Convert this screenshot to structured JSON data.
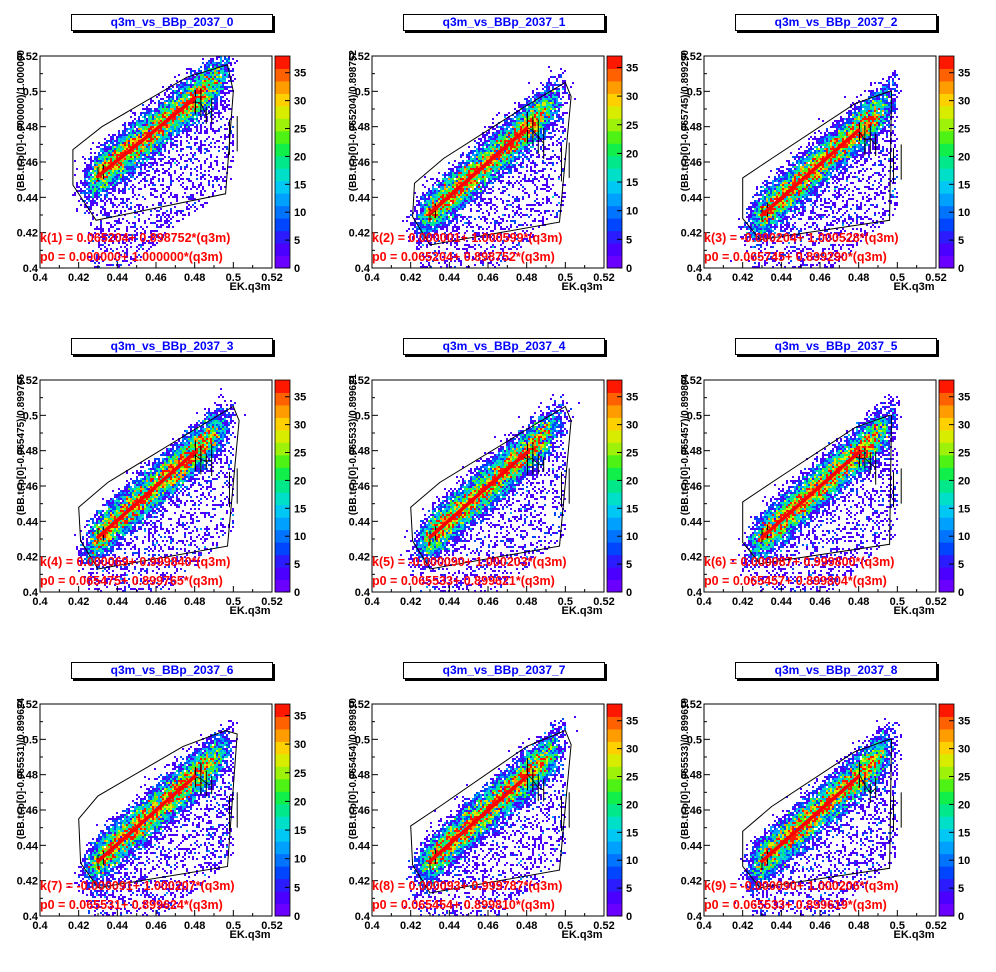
{
  "chart_data": [
    {
      "type": "heatmap",
      "title": "q3m_vs_BBp_2037_0",
      "xlabel": "EK.q3m",
      "ylabel": "(BB.tr.p[0]-0.000000)/1.000000",
      "xlim": [
        0.4,
        0.52
      ],
      "ylim": [
        0.4,
        0.52
      ],
      "x_ticks": [
        "0.4",
        "0.42",
        "0.44",
        "0.46",
        "0.48",
        "0.5",
        "0.52"
      ],
      "y_ticks": [
        "0.4",
        "0.42",
        "0.44",
        "0.46",
        "0.48",
        "0.5",
        "0.52"
      ],
      "z_ticks": [
        "0",
        "5",
        "10",
        "15",
        "20",
        "25",
        "30",
        "35"
      ],
      "zlim": [
        0,
        38
      ],
      "annotations": [
        "k(1) = 0.065204+ 0.898752*(q3m)",
        "p0 = 0.000000+ 1.000000*(q3m)"
      ],
      "fit_line": {
        "x": [
          0.43,
          0.48
        ],
        "y": [
          0.452,
          0.496
        ]
      },
      "profile": [
        [
          0.478,
          0.494
        ],
        [
          0.482,
          0.492
        ],
        [
          0.486,
          0.487
        ],
        [
          0.49,
          0.483
        ],
        [
          0.494,
          0.478
        ]
      ],
      "cut_polygon": [
        [
          0.417,
          0.467
        ],
        [
          0.432,
          0.48
        ],
        [
          0.476,
          0.508
        ],
        [
          0.497,
          0.515
        ],
        [
          0.5,
          0.5
        ],
        [
          0.496,
          0.442
        ],
        [
          0.429,
          0.427
        ],
        [
          0.417,
          0.447
        ]
      ]
    },
    {
      "type": "heatmap",
      "title": "q3m_vs_BBp_2037_1",
      "xlabel": "EK.q3m",
      "ylabel": "(BB.tr.p[0]-0.065204)/0.898752",
      "xlim": [
        0.4,
        0.52
      ],
      "ylim": [
        0.4,
        0.52
      ],
      "x_ticks": [
        "0.4",
        "0.42",
        "0.44",
        "0.46",
        "0.48",
        "0.5",
        "0.52"
      ],
      "y_ticks": [
        "0.4",
        "0.42",
        "0.44",
        "0.46",
        "0.48",
        "0.5",
        "0.52"
      ],
      "z_ticks": [
        "0",
        "5",
        "10",
        "15",
        "20",
        "25",
        "30",
        "35"
      ],
      "zlim": [
        0,
        37
      ],
      "annotations": [
        "k(2) = 0.000001+ 1.000599*(q3m)",
        "p0 = 0.065204+ 0.898752*(q3m)"
      ],
      "fit_line": {
        "x": [
          0.43,
          0.48
        ],
        "y": [
          0.431,
          0.479
        ]
      },
      "profile": [
        [
          0.478,
          0.478
        ],
        [
          0.482,
          0.476
        ],
        [
          0.486,
          0.472
        ],
        [
          0.49,
          0.467
        ],
        [
          0.494,
          0.463
        ]
      ],
      "cut_polygon": [
        [
          0.422,
          0.448
        ],
        [
          0.437,
          0.462
        ],
        [
          0.48,
          0.492
        ],
        [
          0.5,
          0.505
        ],
        [
          0.503,
          0.497
        ],
        [
          0.497,
          0.426
        ],
        [
          0.43,
          0.413
        ],
        [
          0.421,
          0.429
        ]
      ]
    },
    {
      "type": "heatmap",
      "title": "q3m_vs_BBp_2037_2",
      "xlabel": "EK.q3m",
      "ylabel": "(BB.tr.p[0]-0.065745)/0.899290",
      "xlim": [
        0.4,
        0.52
      ],
      "ylim": [
        0.4,
        0.52
      ],
      "x_ticks": [
        "0.4",
        "0.42",
        "0.44",
        "0.46",
        "0.48",
        "0.5",
        "0.52"
      ],
      "y_ticks": [
        "0.4",
        "0.42",
        "0.44",
        "0.46",
        "0.48",
        "0.5",
        "0.52"
      ],
      "z_ticks": [
        "0",
        "5",
        "10",
        "15",
        "20",
        "25",
        "30",
        "35"
      ],
      "zlim": [
        0,
        38
      ],
      "annotations": [
        "k(3) = -0.000204+ 1.000528*(q3m)",
        "p0 = 0.065745+ 0.899290*(q3m)"
      ],
      "fit_line": {
        "x": [
          0.43,
          0.48
        ],
        "y": [
          0.43,
          0.478
        ]
      },
      "profile": [
        [
          0.478,
          0.477
        ],
        [
          0.482,
          0.475
        ],
        [
          0.486,
          0.471
        ],
        [
          0.49,
          0.466
        ],
        [
          0.494,
          0.462
        ]
      ],
      "cut_polygon": [
        [
          0.42,
          0.451
        ],
        [
          0.435,
          0.462
        ],
        [
          0.478,
          0.493
        ],
        [
          0.496,
          0.5
        ],
        [
          0.497,
          0.5
        ],
        [
          0.496,
          0.427
        ],
        [
          0.429,
          0.416
        ],
        [
          0.42,
          0.428
        ]
      ]
    },
    {
      "type": "heatmap",
      "title": "q3m_vs_BBp_2037_3",
      "xlabel": "EK.q3m",
      "ylabel": "(BB.tr.p[0]-0.065475)/0.899765",
      "xlim": [
        0.4,
        0.52
      ],
      "ylim": [
        0.4,
        0.52
      ],
      "x_ticks": [
        "0.4",
        "0.42",
        "0.44",
        "0.46",
        "0.48",
        "0.5",
        "0.52"
      ],
      "y_ticks": [
        "0.4",
        "0.42",
        "0.44",
        "0.46",
        "0.48",
        "0.5",
        "0.52"
      ],
      "z_ticks": [
        "0",
        "5",
        "10",
        "15",
        "20",
        "25",
        "30",
        "35"
      ],
      "zlim": [
        0,
        38
      ],
      "annotations": [
        "k(4) = 0.000069+ 0.999840*(q3m)",
        "p0 = 0.065475+ 0.899765*(q3m)"
      ],
      "fit_line": {
        "x": [
          0.43,
          0.48
        ],
        "y": [
          0.431,
          0.479
        ]
      },
      "profile": [
        [
          0.478,
          0.478
        ],
        [
          0.482,
          0.476
        ],
        [
          0.486,
          0.472
        ],
        [
          0.49,
          0.467
        ],
        [
          0.494,
          0.462
        ]
      ],
      "cut_polygon": [
        [
          0.42,
          0.448
        ],
        [
          0.435,
          0.462
        ],
        [
          0.48,
          0.492
        ],
        [
          0.5,
          0.505
        ],
        [
          0.503,
          0.497
        ],
        [
          0.497,
          0.426
        ],
        [
          0.43,
          0.413
        ],
        [
          0.421,
          0.429
        ]
      ]
    },
    {
      "type": "heatmap",
      "title": "q3m_vs_BBp_2037_4",
      "xlabel": "EK.q3m",
      "ylabel": "(BB.tr.p[0]-0.065533)/0.899621",
      "xlim": [
        0.4,
        0.52
      ],
      "ylim": [
        0.4,
        0.52
      ],
      "x_ticks": [
        "0.4",
        "0.42",
        "0.44",
        "0.46",
        "0.48",
        "0.5",
        "0.52"
      ],
      "y_ticks": [
        "0.4",
        "0.42",
        "0.44",
        "0.46",
        "0.48",
        "0.5",
        "0.52"
      ],
      "z_ticks": [
        "0",
        "5",
        "10",
        "15",
        "20",
        "25",
        "30",
        "35"
      ],
      "zlim": [
        0,
        38
      ],
      "annotations": [
        "k(5) = -0.000090+ 1.000203*(q3m)",
        "p0 = 0.065533+ 0.899621*(q3m)"
      ],
      "fit_line": {
        "x": [
          0.43,
          0.48
        ],
        "y": [
          0.431,
          0.479
        ]
      },
      "profile": [
        [
          0.478,
          0.478
        ],
        [
          0.482,
          0.476
        ],
        [
          0.486,
          0.472
        ],
        [
          0.49,
          0.467
        ],
        [
          0.494,
          0.462
        ]
      ],
      "cut_polygon": [
        [
          0.42,
          0.448
        ],
        [
          0.435,
          0.462
        ],
        [
          0.48,
          0.492
        ],
        [
          0.5,
          0.505
        ],
        [
          0.503,
          0.497
        ],
        [
          0.497,
          0.426
        ],
        [
          0.43,
          0.413
        ],
        [
          0.421,
          0.429
        ]
      ]
    },
    {
      "type": "heatmap",
      "title": "q3m_vs_BBp_2037_5",
      "xlabel": "EK.q3m",
      "ylabel": "(BB.tr.p[0]-0.065457)/0.899804",
      "xlim": [
        0.4,
        0.52
      ],
      "ylim": [
        0.4,
        0.52
      ],
      "x_ticks": [
        "0.4",
        "0.42",
        "0.44",
        "0.46",
        "0.48",
        "0.5",
        "0.52"
      ],
      "y_ticks": [
        "0.4",
        "0.42",
        "0.44",
        "0.46",
        "0.48",
        "0.5",
        "0.52"
      ],
      "z_ticks": [
        "0",
        "5",
        "10",
        "15",
        "20",
        "25",
        "30",
        "35"
      ],
      "zlim": [
        0,
        38
      ],
      "annotations": [
        "k(6) = 0.000087+ 0.999800*(q3m)",
        "p0 = 0.065457+ 0.899804*(q3m)"
      ],
      "fit_line": {
        "x": [
          0.43,
          0.48
        ],
        "y": [
          0.431,
          0.479
        ]
      },
      "profile": [
        [
          0.478,
          0.478
        ],
        [
          0.482,
          0.476
        ],
        [
          0.486,
          0.472
        ],
        [
          0.49,
          0.467
        ],
        [
          0.494,
          0.462
        ]
      ],
      "cut_polygon": [
        [
          0.42,
          0.451
        ],
        [
          0.435,
          0.462
        ],
        [
          0.478,
          0.493
        ],
        [
          0.496,
          0.5
        ],
        [
          0.497,
          0.5
        ],
        [
          0.496,
          0.427
        ],
        [
          0.429,
          0.416
        ],
        [
          0.42,
          0.428
        ]
      ]
    },
    {
      "type": "heatmap",
      "title": "q3m_vs_BBp_2037_6",
      "xlabel": "EK.q3m",
      "ylabel": "(BB.tr.p[0]-0.065531)/0.899624",
      "xlim": [
        0.4,
        0.52
      ],
      "ylim": [
        0.4,
        0.52
      ],
      "x_ticks": [
        "0.4",
        "0.42",
        "0.44",
        "0.46",
        "0.48",
        "0.5",
        "0.52"
      ],
      "y_ticks": [
        "0.4",
        "0.42",
        "0.44",
        "0.46",
        "0.48",
        "0.5",
        "0.52"
      ],
      "z_ticks": [
        "0",
        "5",
        "10",
        "15",
        "20",
        "25",
        "30",
        "35"
      ],
      "zlim": [
        0,
        37
      ],
      "annotations": [
        "k(7) = -0.000091+ 1.000207*(q3m)",
        "p0 = 0.065531+ 0.899624*(q3m)"
      ],
      "fit_line": {
        "x": [
          0.43,
          0.48
        ],
        "y": [
          0.431,
          0.479
        ]
      },
      "profile": [
        [
          0.478,
          0.478
        ],
        [
          0.482,
          0.476
        ],
        [
          0.486,
          0.472
        ],
        [
          0.49,
          0.467
        ],
        [
          0.494,
          0.462
        ]
      ],
      "cut_polygon": [
        [
          0.42,
          0.455
        ],
        [
          0.43,
          0.468
        ],
        [
          0.474,
          0.496
        ],
        [
          0.496,
          0.505
        ],
        [
          0.502,
          0.503
        ],
        [
          0.497,
          0.428
        ],
        [
          0.43,
          0.416
        ],
        [
          0.421,
          0.43
        ]
      ]
    },
    {
      "type": "heatmap",
      "title": "q3m_vs_BBp_2037_7",
      "xlabel": "EK.q3m",
      "ylabel": "(BB.tr.p[0]-0.065454)/0.899810",
      "xlim": [
        0.4,
        0.52
      ],
      "ylim": [
        0.4,
        0.52
      ],
      "x_ticks": [
        "0.4",
        "0.42",
        "0.44",
        "0.46",
        "0.48",
        "0.5",
        "0.52"
      ],
      "y_ticks": [
        "0.4",
        "0.42",
        "0.44",
        "0.46",
        "0.48",
        "0.5",
        "0.52"
      ],
      "z_ticks": [
        "0",
        "5",
        "10",
        "15",
        "20",
        "25",
        "30",
        "35"
      ],
      "zlim": [
        0,
        38
      ],
      "annotations": [
        "k(8) = 0.000093+ 0.999787*(q3m)",
        "p0 = 0.065454+ 0.899810*(q3m)"
      ],
      "fit_line": {
        "x": [
          0.43,
          0.48
        ],
        "y": [
          0.431,
          0.479
        ]
      },
      "profile": [
        [
          0.478,
          0.478
        ],
        [
          0.482,
          0.476
        ],
        [
          0.486,
          0.472
        ],
        [
          0.49,
          0.467
        ],
        [
          0.494,
          0.462
        ]
      ],
      "cut_polygon": [
        [
          0.42,
          0.451
        ],
        [
          0.435,
          0.462
        ],
        [
          0.48,
          0.496
        ],
        [
          0.5,
          0.505
        ],
        [
          0.503,
          0.497
        ],
        [
          0.497,
          0.426
        ],
        [
          0.43,
          0.413
        ],
        [
          0.421,
          0.429
        ]
      ]
    },
    {
      "type": "heatmap",
      "title": "q3m_vs_BBp_2037_8",
      "xlabel": "EK.q3m",
      "ylabel": "(BB.tr.p[0]-0.065533)/0.899619",
      "xlim": [
        0.4,
        0.52
      ],
      "ylim": [
        0.4,
        0.52
      ],
      "x_ticks": [
        "0.4",
        "0.42",
        "0.44",
        "0.46",
        "0.48",
        "0.5",
        "0.52"
      ],
      "y_ticks": [
        "0.4",
        "0.42",
        "0.44",
        "0.46",
        "0.48",
        "0.5",
        "0.52"
      ],
      "z_ticks": [
        "0",
        "5",
        "10",
        "15",
        "20",
        "25",
        "30",
        "35"
      ],
      "zlim": [
        0,
        38
      ],
      "annotations": [
        "k(9) = -0.000090+ 1.000206*(q3m)",
        "p0 = 0.065533+ 0.899619*(q3m)"
      ],
      "fit_line": {
        "x": [
          0.43,
          0.48
        ],
        "y": [
          0.431,
          0.479
        ]
      },
      "profile": [
        [
          0.478,
          0.478
        ],
        [
          0.482,
          0.476
        ],
        [
          0.486,
          0.472
        ],
        [
          0.49,
          0.467
        ],
        [
          0.494,
          0.462
        ]
      ],
      "cut_polygon": [
        [
          0.42,
          0.448
        ],
        [
          0.435,
          0.462
        ],
        [
          0.478,
          0.493
        ],
        [
          0.496,
          0.5
        ],
        [
          0.497,
          0.5
        ],
        [
          0.496,
          0.427
        ],
        [
          0.429,
          0.416
        ],
        [
          0.42,
          0.428
        ]
      ]
    }
  ],
  "colors": {
    "title": "#0000ff",
    "annotation": "#ff0000",
    "fit": "#ff0000",
    "frame": "#000000"
  }
}
